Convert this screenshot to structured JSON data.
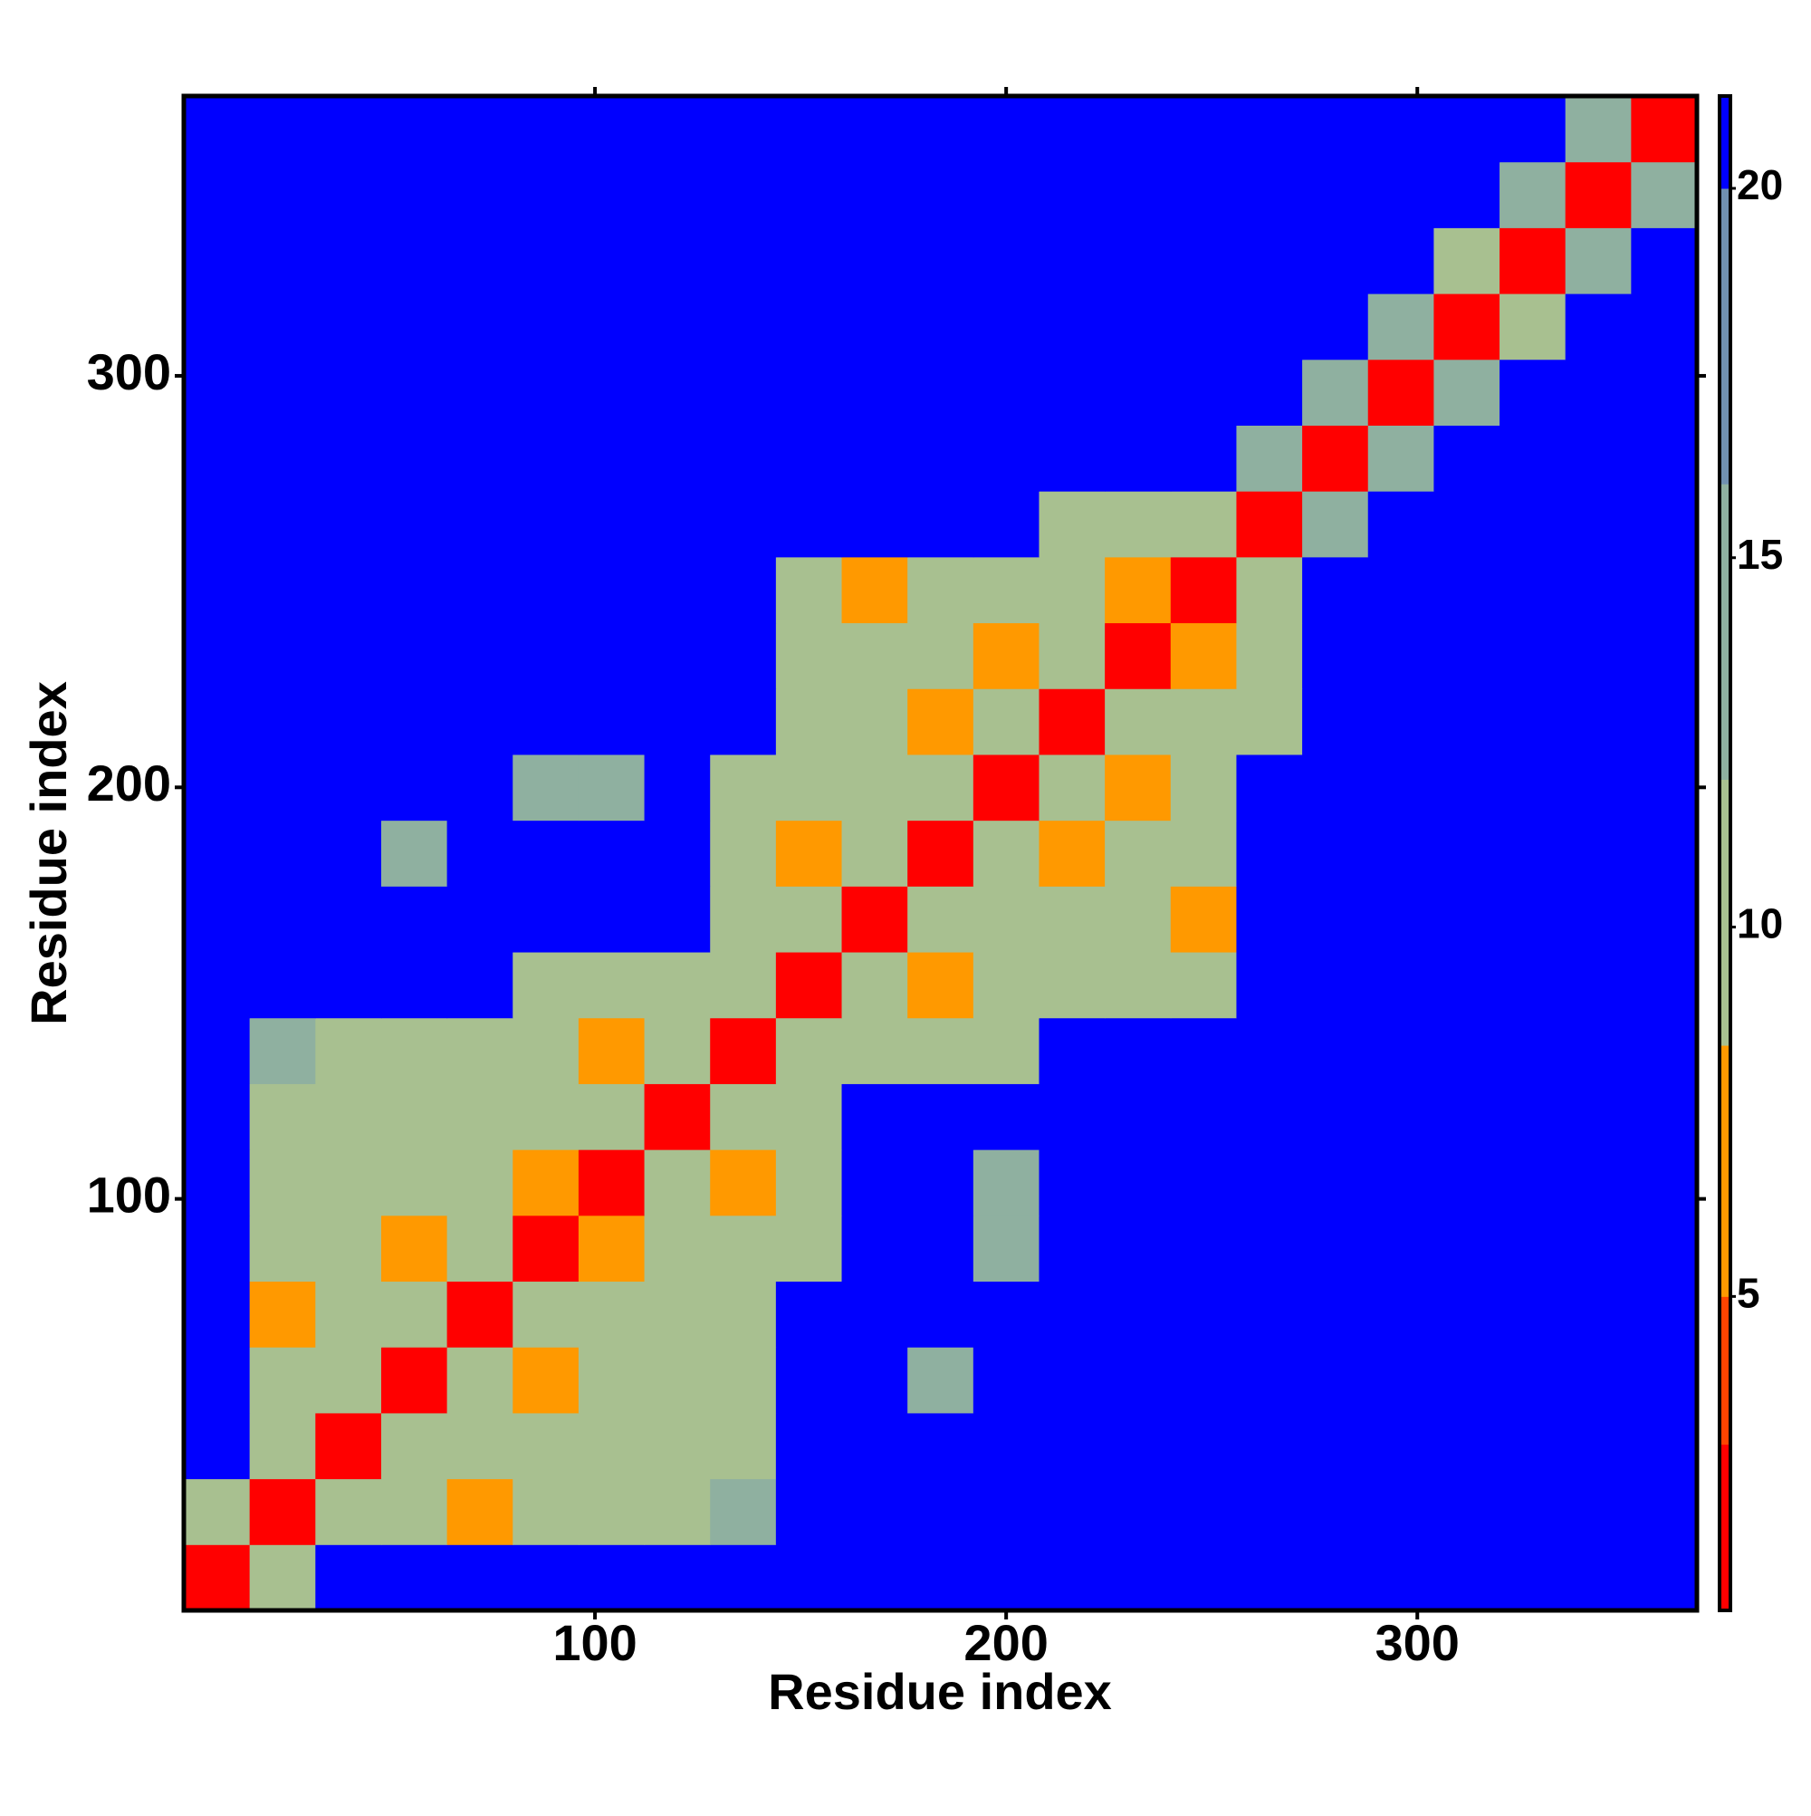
{
  "chart_data": {
    "type": "heatmap",
    "xlabel": "Residue index",
    "ylabel": "Residue index",
    "bins": [
      0,
      16,
      32,
      48,
      64,
      80,
      96,
      112,
      128,
      144,
      160,
      176,
      192,
      208,
      224,
      240,
      256,
      272,
      288,
      304,
      320,
      336,
      352,
      368
    ],
    "z": [
      [
        2,
        10,
        21,
        21,
        21,
        21,
        21,
        21,
        21,
        21,
        21,
        21,
        21,
        21,
        21,
        21,
        21,
        21,
        21,
        21,
        21,
        21,
        21
      ],
      [
        10,
        2,
        10,
        10,
        7,
        10,
        10,
        10,
        14,
        21,
        21,
        21,
        21,
        21,
        21,
        21,
        21,
        21,
        21,
        21,
        21,
        21,
        21
      ],
      [
        21,
        10,
        2,
        10,
        10,
        10,
        10,
        10,
        10,
        21,
        21,
        21,
        21,
        21,
        21,
        21,
        21,
        21,
        21,
        21,
        21,
        21,
        21
      ],
      [
        21,
        10,
        10,
        2,
        10,
        7,
        10,
        10,
        10,
        21,
        21,
        14,
        21,
        21,
        21,
        21,
        21,
        21,
        21,
        21,
        21,
        21,
        21
      ],
      [
        21,
        7,
        10,
        10,
        2,
        10,
        10,
        10,
        10,
        21,
        21,
        21,
        21,
        21,
        21,
        21,
        21,
        21,
        21,
        21,
        21,
        21,
        21
      ],
      [
        21,
        10,
        10,
        7,
        10,
        2,
        7,
        10,
        10,
        10,
        21,
        21,
        14,
        21,
        21,
        21,
        21,
        21,
        21,
        21,
        21,
        21,
        21
      ],
      [
        21,
        10,
        10,
        10,
        10,
        7,
        2,
        10,
        7,
        10,
        21,
        21,
        14,
        21,
        21,
        21,
        21,
        21,
        21,
        21,
        21,
        21,
        21
      ],
      [
        21,
        10,
        10,
        10,
        10,
        10,
        10,
        2,
        10,
        10,
        21,
        21,
        21,
        21,
        21,
        21,
        21,
        21,
        21,
        21,
        21,
        21,
        21
      ],
      [
        21,
        14,
        10,
        10,
        10,
        10,
        7,
        10,
        2,
        10,
        10,
        10,
        10,
        21,
        21,
        21,
        21,
        21,
        21,
        21,
        21,
        21,
        21
      ],
      [
        21,
        21,
        21,
        21,
        21,
        10,
        10,
        10,
        10,
        2,
        10,
        7,
        10,
        10,
        10,
        10,
        21,
        21,
        21,
        21,
        21,
        21,
        21
      ],
      [
        21,
        21,
        21,
        21,
        21,
        21,
        21,
        21,
        10,
        10,
        2,
        10,
        10,
        10,
        10,
        7,
        21,
        21,
        21,
        21,
        21,
        21,
        21
      ],
      [
        21,
        21,
        21,
        14,
        21,
        21,
        21,
        21,
        10,
        7,
        10,
        2,
        10,
        7,
        10,
        10,
        21,
        21,
        21,
        21,
        21,
        21,
        21
      ],
      [
        21,
        21,
        21,
        21,
        21,
        14,
        14,
        21,
        10,
        10,
        10,
        10,
        2,
        10,
        7,
        10,
        21,
        21,
        21,
        21,
        21,
        21,
        21
      ],
      [
        21,
        21,
        21,
        21,
        21,
        21,
        21,
        21,
        21,
        10,
        10,
        7,
        10,
        2,
        10,
        10,
        10,
        21,
        21,
        21,
        21,
        21,
        21
      ],
      [
        21,
        21,
        21,
        21,
        21,
        21,
        21,
        21,
        21,
        10,
        10,
        10,
        7,
        10,
        2,
        7,
        10,
        21,
        21,
        21,
        21,
        21,
        21
      ],
      [
        21,
        21,
        21,
        21,
        21,
        21,
        21,
        21,
        21,
        10,
        7,
        10,
        10,
        10,
        7,
        2,
        10,
        21,
        21,
        21,
        21,
        21,
        21
      ],
      [
        21,
        21,
        21,
        21,
        21,
        21,
        21,
        21,
        21,
        21,
        21,
        21,
        21,
        10,
        10,
        10,
        2,
        14,
        21,
        21,
        21,
        21,
        21
      ],
      [
        21,
        21,
        21,
        21,
        21,
        21,
        21,
        21,
        21,
        21,
        21,
        21,
        21,
        21,
        21,
        21,
        14,
        2,
        14,
        21,
        21,
        21,
        21
      ],
      [
        21,
        21,
        21,
        21,
        21,
        21,
        21,
        21,
        21,
        21,
        21,
        21,
        21,
        21,
        21,
        21,
        21,
        14,
        2,
        14,
        21,
        21,
        21
      ],
      [
        21,
        21,
        21,
        21,
        21,
        21,
        21,
        21,
        21,
        21,
        21,
        21,
        21,
        21,
        21,
        21,
        21,
        21,
        14,
        2,
        10,
        21,
        21
      ],
      [
        21,
        21,
        21,
        21,
        21,
        21,
        21,
        21,
        21,
        21,
        21,
        21,
        21,
        21,
        21,
        21,
        21,
        21,
        21,
        10,
        2,
        14,
        21
      ],
      [
        21,
        21,
        21,
        21,
        21,
        21,
        21,
        21,
        21,
        21,
        21,
        21,
        21,
        21,
        21,
        21,
        21,
        21,
        21,
        21,
        14,
        2,
        14
      ],
      [
        21,
        21,
        21,
        21,
        21,
        21,
        21,
        21,
        21,
        21,
        21,
        21,
        21,
        21,
        21,
        21,
        21,
        21,
        21,
        21,
        21,
        14,
        2
      ]
    ],
    "xlim": [
      0,
      368
    ],
    "ylim": [
      0,
      368
    ],
    "xticks": [
      100,
      200,
      300
    ],
    "yticks": [
      100,
      200,
      300
    ],
    "colorscale": [
      [
        0.75,
        "#ff0000"
      ],
      [
        3,
        "#ff4400"
      ],
      [
        5,
        "#ff9900"
      ],
      [
        8.4,
        "#a8c090"
      ],
      [
        12,
        "#8fb0a0"
      ],
      [
        16,
        "#7090b0"
      ],
      [
        20,
        "#0000ff"
      ]
    ],
    "colorbar": {
      "lim": [
        0.75,
        21.25
      ],
      "ticks": [
        5,
        10,
        15,
        20
      ]
    }
  }
}
